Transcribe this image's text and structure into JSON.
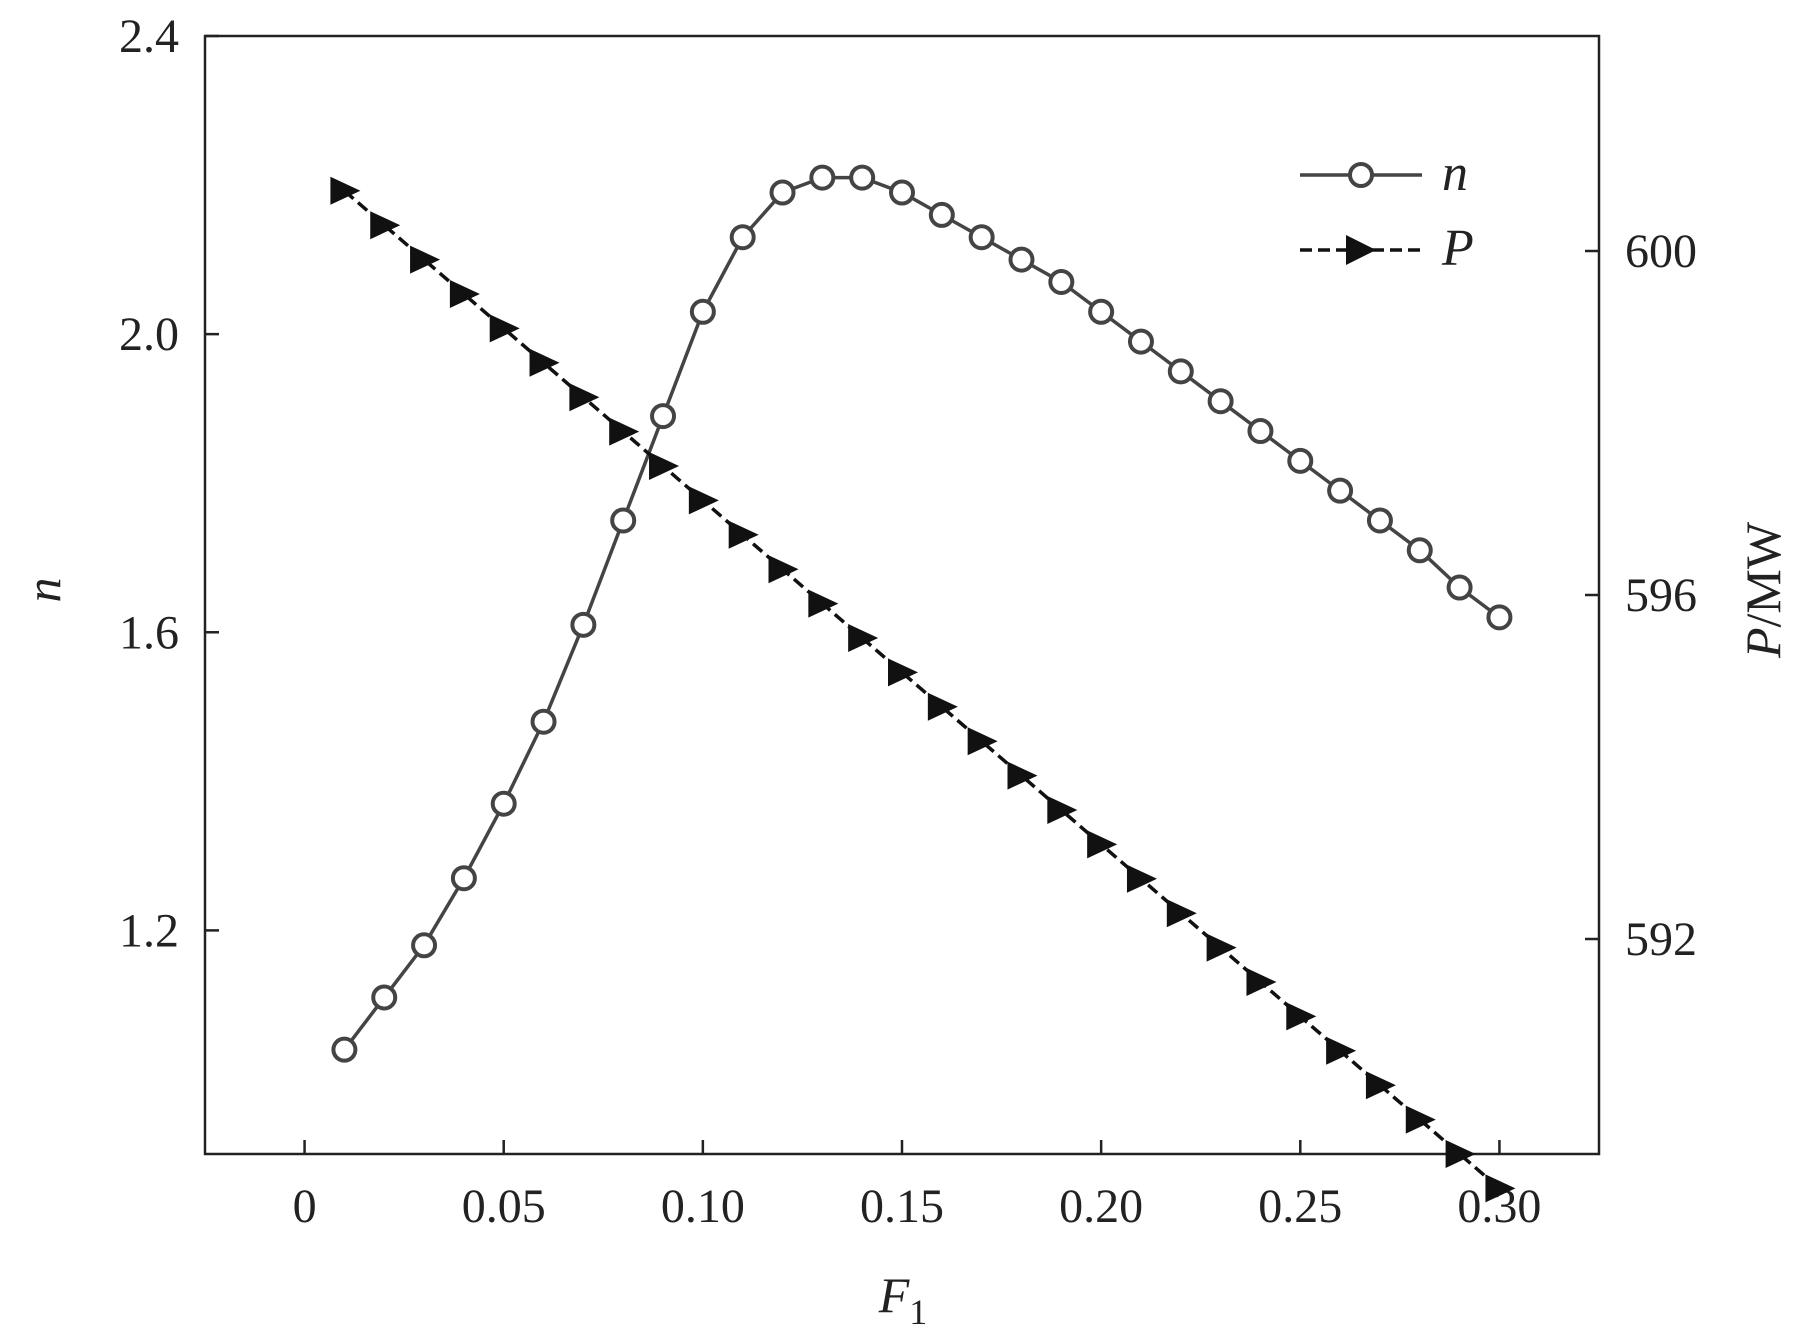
{
  "chart_data": {
    "type": "line",
    "xlabel": "F",
    "xlabel_sub": "1",
    "ylabel_left": "n",
    "ylabel_right_italic": "P",
    "ylabel_right_unit": "/MW",
    "xlim": [
      -0.025,
      0.325
    ],
    "ylim_left": [
      0.9,
      2.4
    ],
    "ylim_right": [
      589.5,
      602.5
    ],
    "x_ticks": [
      {
        "value": 0,
        "label": "0"
      },
      {
        "value": 0.05,
        "label": "0.05"
      },
      {
        "value": 0.1,
        "label": "0.10"
      },
      {
        "value": 0.15,
        "label": "0.15"
      },
      {
        "value": 0.2,
        "label": "0.20"
      },
      {
        "value": 0.25,
        "label": "0.25"
      },
      {
        "value": 0.3,
        "label": "0.30"
      }
    ],
    "y_left_ticks": [
      {
        "value": 1.2,
        "label": "1.2"
      },
      {
        "value": 1.6,
        "label": "1.6"
      },
      {
        "value": 2.0,
        "label": "2.0"
      },
      {
        "value": 2.4,
        "label": "2.4"
      }
    ],
    "y_right_ticks": [
      {
        "value": 592,
        "label": "592"
      },
      {
        "value": 596,
        "label": "596"
      },
      {
        "value": 600,
        "label": "600"
      }
    ],
    "grid": false,
    "legend_position": "top-right",
    "x": [
      0.01,
      0.02,
      0.03,
      0.04,
      0.05,
      0.06,
      0.07,
      0.08,
      0.09,
      0.1,
      0.11,
      0.12,
      0.13,
      0.14,
      0.15,
      0.16,
      0.17,
      0.18,
      0.19,
      0.2,
      0.21,
      0.22,
      0.23,
      0.24,
      0.25,
      0.26,
      0.27,
      0.28,
      0.29,
      0.3
    ],
    "series": [
      {
        "name": "n",
        "axis": "left",
        "marker": "open-circle",
        "line": "solid",
        "color": "#444444",
        "values": [
          1.04,
          1.11,
          1.18,
          1.27,
          1.37,
          1.48,
          1.61,
          1.75,
          1.89,
          2.03,
          2.13,
          2.19,
          2.21,
          2.21,
          2.19,
          2.16,
          2.13,
          2.1,
          2.07,
          2.03,
          1.99,
          1.95,
          1.91,
          1.87,
          1.83,
          1.79,
          1.75,
          1.71,
          1.66,
          1.62
        ]
      },
      {
        "name": "P",
        "axis": "right",
        "marker": "filled-triangle-right",
        "line": "dashed",
        "color": "#111111",
        "values": [
          600.7,
          600.3,
          599.9,
          599.5,
          599.1,
          598.7,
          598.3,
          597.9,
          597.5,
          597.1,
          596.7,
          596.3,
          595.9,
          595.5,
          595.1,
          594.7,
          594.3,
          593.9,
          593.5,
          593.1,
          592.7,
          592.3,
          591.9,
          591.5,
          591.1,
          590.7,
          590.3,
          589.9,
          589.5,
          589.1
        ]
      }
    ]
  }
}
